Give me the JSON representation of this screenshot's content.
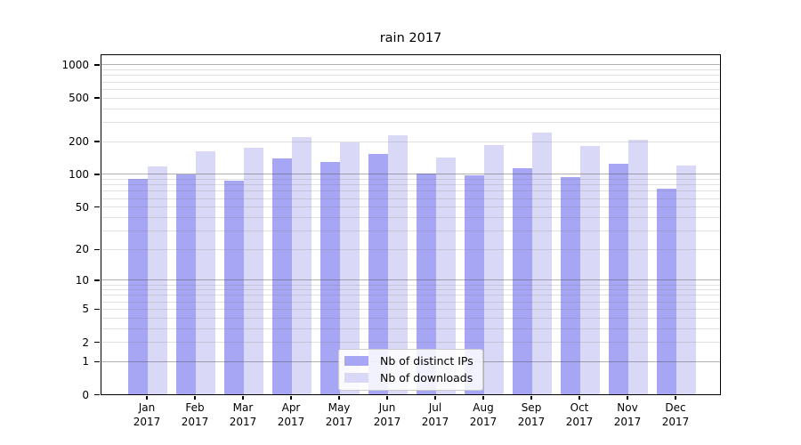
{
  "title": "rain 2017",
  "chart_data": {
    "type": "bar",
    "title": "rain 2017",
    "categories": [
      "Jan\n2017",
      "Feb\n2017",
      "Mar\n2017",
      "Apr\n2017",
      "May\n2017",
      "Jun\n2017",
      "Jul\n2017",
      "Aug\n2017",
      "Sep\n2017",
      "Oct\n2017",
      "Nov\n2017",
      "Dec\n2017"
    ],
    "series": [
      {
        "name": "Nb of distinct IPs",
        "color": "#a6a6f5",
        "values": [
          89,
          99,
          86,
          138,
          127,
          150,
          100,
          97,
          111,
          93,
          122,
          73
        ]
      },
      {
        "name": "Nb of downloads",
        "color": "#d9d9f7",
        "values": [
          116,
          160,
          173,
          216,
          192,
          222,
          140,
          181,
          237,
          180,
          205,
          118
        ]
      }
    ],
    "xlabel": "",
    "ylabel": "",
    "yscale": "log1p",
    "ylim": [
      0,
      1250
    ],
    "yticks": [
      0,
      1,
      2,
      5,
      10,
      20,
      50,
      100,
      200,
      500,
      1000
    ],
    "grid": "both",
    "grid_major_color": "#b0b0b0",
    "grid_minor_color": "#e1e1e1",
    "legend_position": "lower center"
  }
}
